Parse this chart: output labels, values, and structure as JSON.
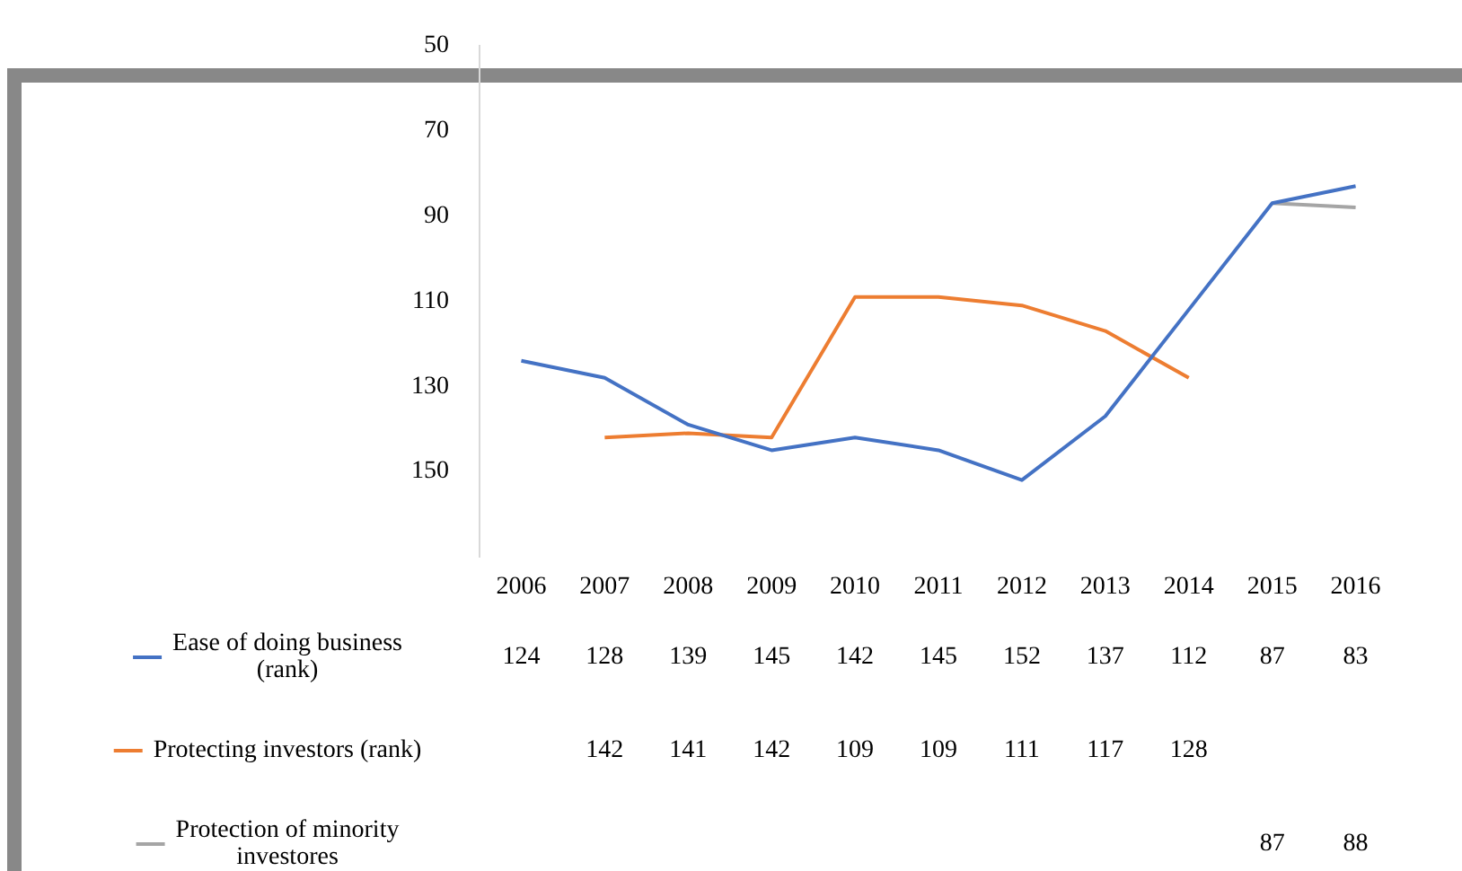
{
  "chart_data": {
    "type": "line",
    "categories": [
      "2006",
      "2007",
      "2008",
      "2009",
      "2010",
      "2011",
      "2012",
      "2013",
      "2014",
      "2015",
      "2016"
    ],
    "series": [
      {
        "name": "Ease of doing business (rank)",
        "color": "#4472c4",
        "values": [
          124,
          128,
          139,
          145,
          142,
          145,
          152,
          137,
          112,
          87,
          83
        ]
      },
      {
        "name": "Protecting investors (rank)",
        "color": "#ed7d31",
        "values": [
          null,
          142,
          141,
          142,
          109,
          109,
          111,
          117,
          128,
          null,
          null
        ]
      },
      {
        "name": "Protection of minority investores",
        "color": "#a5a5a5",
        "values": [
          null,
          null,
          null,
          null,
          null,
          null,
          null,
          null,
          null,
          87,
          88
        ]
      }
    ],
    "ylim": [
      170,
      50
    ],
    "yticks": [
      50,
      70,
      90,
      110,
      130,
      150
    ],
    "data_labels": true,
    "legend": "left",
    "grid": false,
    "marker": "none",
    "line_style": "solid"
  }
}
